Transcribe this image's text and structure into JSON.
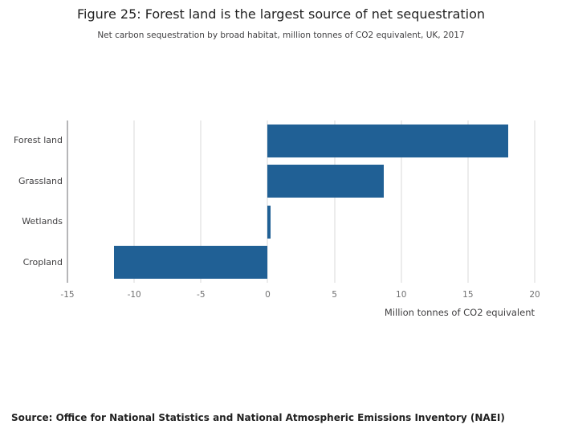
{
  "header": {
    "title": "Figure 25: Forest land is the largest source of net sequestration",
    "subtitle": "Net carbon sequestration by broad habitat, million tonnes of CO2 equivalent, UK, 2017"
  },
  "chart_data": {
    "type": "bar",
    "orientation": "horizontal",
    "title": "Figure 25: Forest land is the largest source of net sequestration",
    "subtitle": "Net carbon sequestration by broad habitat, million tonnes of CO2 equivalent, UK, 2017",
    "categories": [
      "Forest land",
      "Grassland",
      "Wetlands",
      "Cropland"
    ],
    "values": [
      18,
      8.7,
      0.2,
      -11.5
    ],
    "xlabel": "Million tonnes of CO2 equivalent",
    "ylabel": "",
    "xlim": [
      -15,
      20
    ],
    "xticks": [
      -15,
      -10,
      -5,
      0,
      5,
      10,
      15,
      20
    ],
    "grid": true,
    "legend": "none",
    "colors": {
      "bar": "#206095",
      "gridline": "#d9d9d9",
      "axis_line": "#6d6e71",
      "tick_text": "#707071",
      "label_text": "#414042"
    }
  },
  "footer": {
    "source": "Source: Office for National Statistics and National Atmospheric Emissions Inventory (NAEI)"
  }
}
